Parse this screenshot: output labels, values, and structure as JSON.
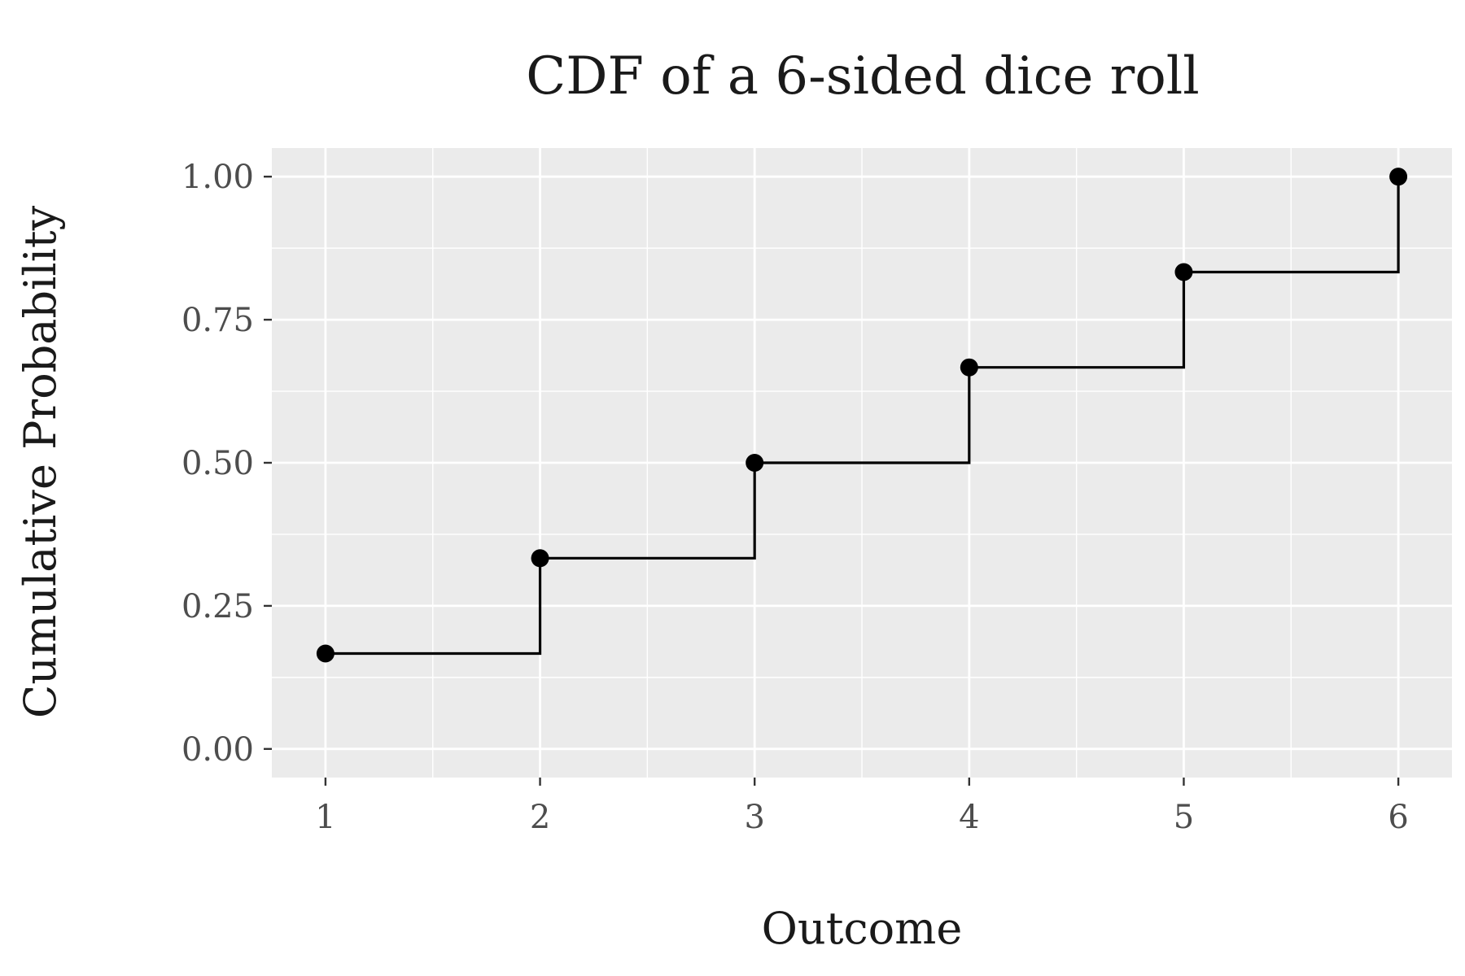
{
  "chart_data": {
    "type": "line",
    "subtype": "step",
    "title": "CDF of a 6-sided dice roll",
    "xlabel": "Outcome",
    "ylabel": "Cumulative Probability",
    "x": [
      1,
      2,
      3,
      4,
      5,
      6
    ],
    "series": [
      {
        "values": [
          0.1667,
          0.3333,
          0.5,
          0.6667,
          0.8333,
          1.0
        ]
      }
    ],
    "xlim": [
      0.75,
      6.25
    ],
    "ylim": [
      -0.05,
      1.05
    ],
    "x_ticks": [
      "1",
      "2",
      "3",
      "4",
      "5",
      "6"
    ],
    "x_tick_values": [
      1,
      2,
      3,
      4,
      5,
      6
    ],
    "y_ticks": [
      "0.00",
      "0.25",
      "0.50",
      "0.75",
      "1.00"
    ],
    "y_tick_values": [
      0,
      0.25,
      0.5,
      0.75,
      1.0
    ],
    "grid": true,
    "legend": "none",
    "colors": {
      "panel_background": "#ebebeb",
      "grid": "#ffffff",
      "line": "#000000",
      "points": "#000000",
      "tick_text": "#4d4d4d",
      "title_text": "#1a1a1a"
    }
  }
}
